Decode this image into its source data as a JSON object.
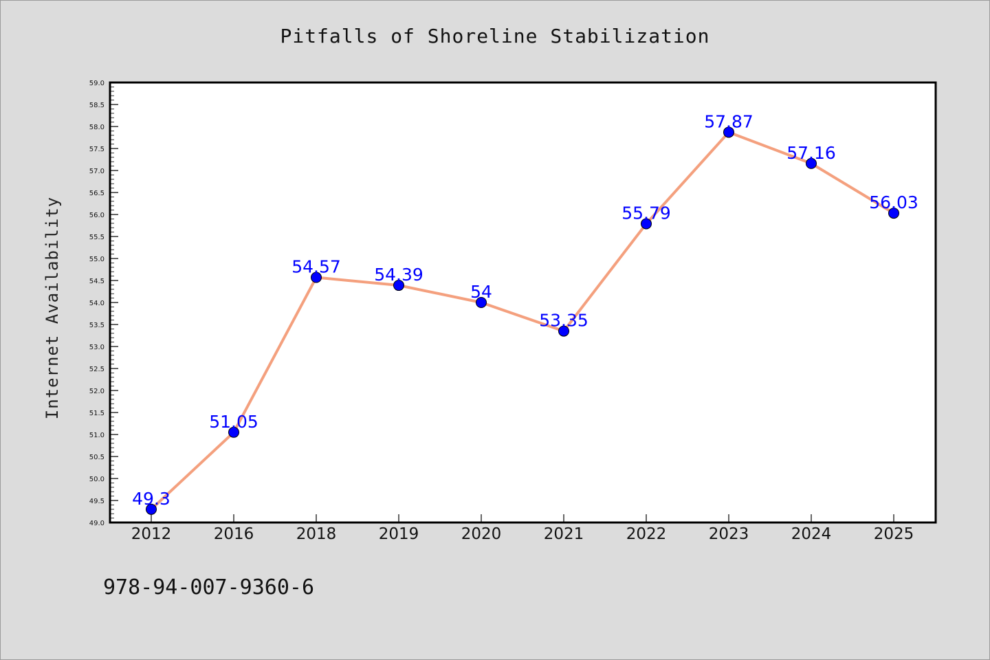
{
  "chart_data": {
    "type": "line",
    "title": "Pitfalls of Shoreline Stabilization",
    "xlabel": "",
    "ylabel": "Internet Availability",
    "categories": [
      "2012",
      "2016",
      "2018",
      "2019",
      "2020",
      "2021",
      "2022",
      "2023",
      "2024",
      "2025"
    ],
    "values": [
      49.3,
      51.05,
      54.57,
      54.39,
      54,
      53.35,
      55.79,
      57.87,
      57.16,
      56.03
    ],
    "data_labels": [
      "49.3",
      "51.05",
      "54.57",
      "54.39",
      "54",
      "53.35",
      "55.79",
      "57.87",
      "57.16",
      "56.03"
    ],
    "ylim": [
      49.0,
      59.0
    ],
    "yticks": [
      "49.0",
      "49.5",
      "50.0",
      "50.5",
      "51.0",
      "51.5",
      "52.0",
      "52.5",
      "53.0",
      "53.5",
      "54.0",
      "54.5",
      "55.0",
      "55.5",
      "56.0",
      "56.5",
      "57.0",
      "57.5",
      "58.0",
      "58.5",
      "59.0"
    ],
    "grid": false,
    "line_color": "#f4a07e",
    "marker_color": "#0000ff",
    "label_color": "#0000ff",
    "background": "#dcdcdc",
    "plot_background": "#ffffff"
  },
  "footer": {
    "isbn": "978-94-007-9360-6"
  }
}
